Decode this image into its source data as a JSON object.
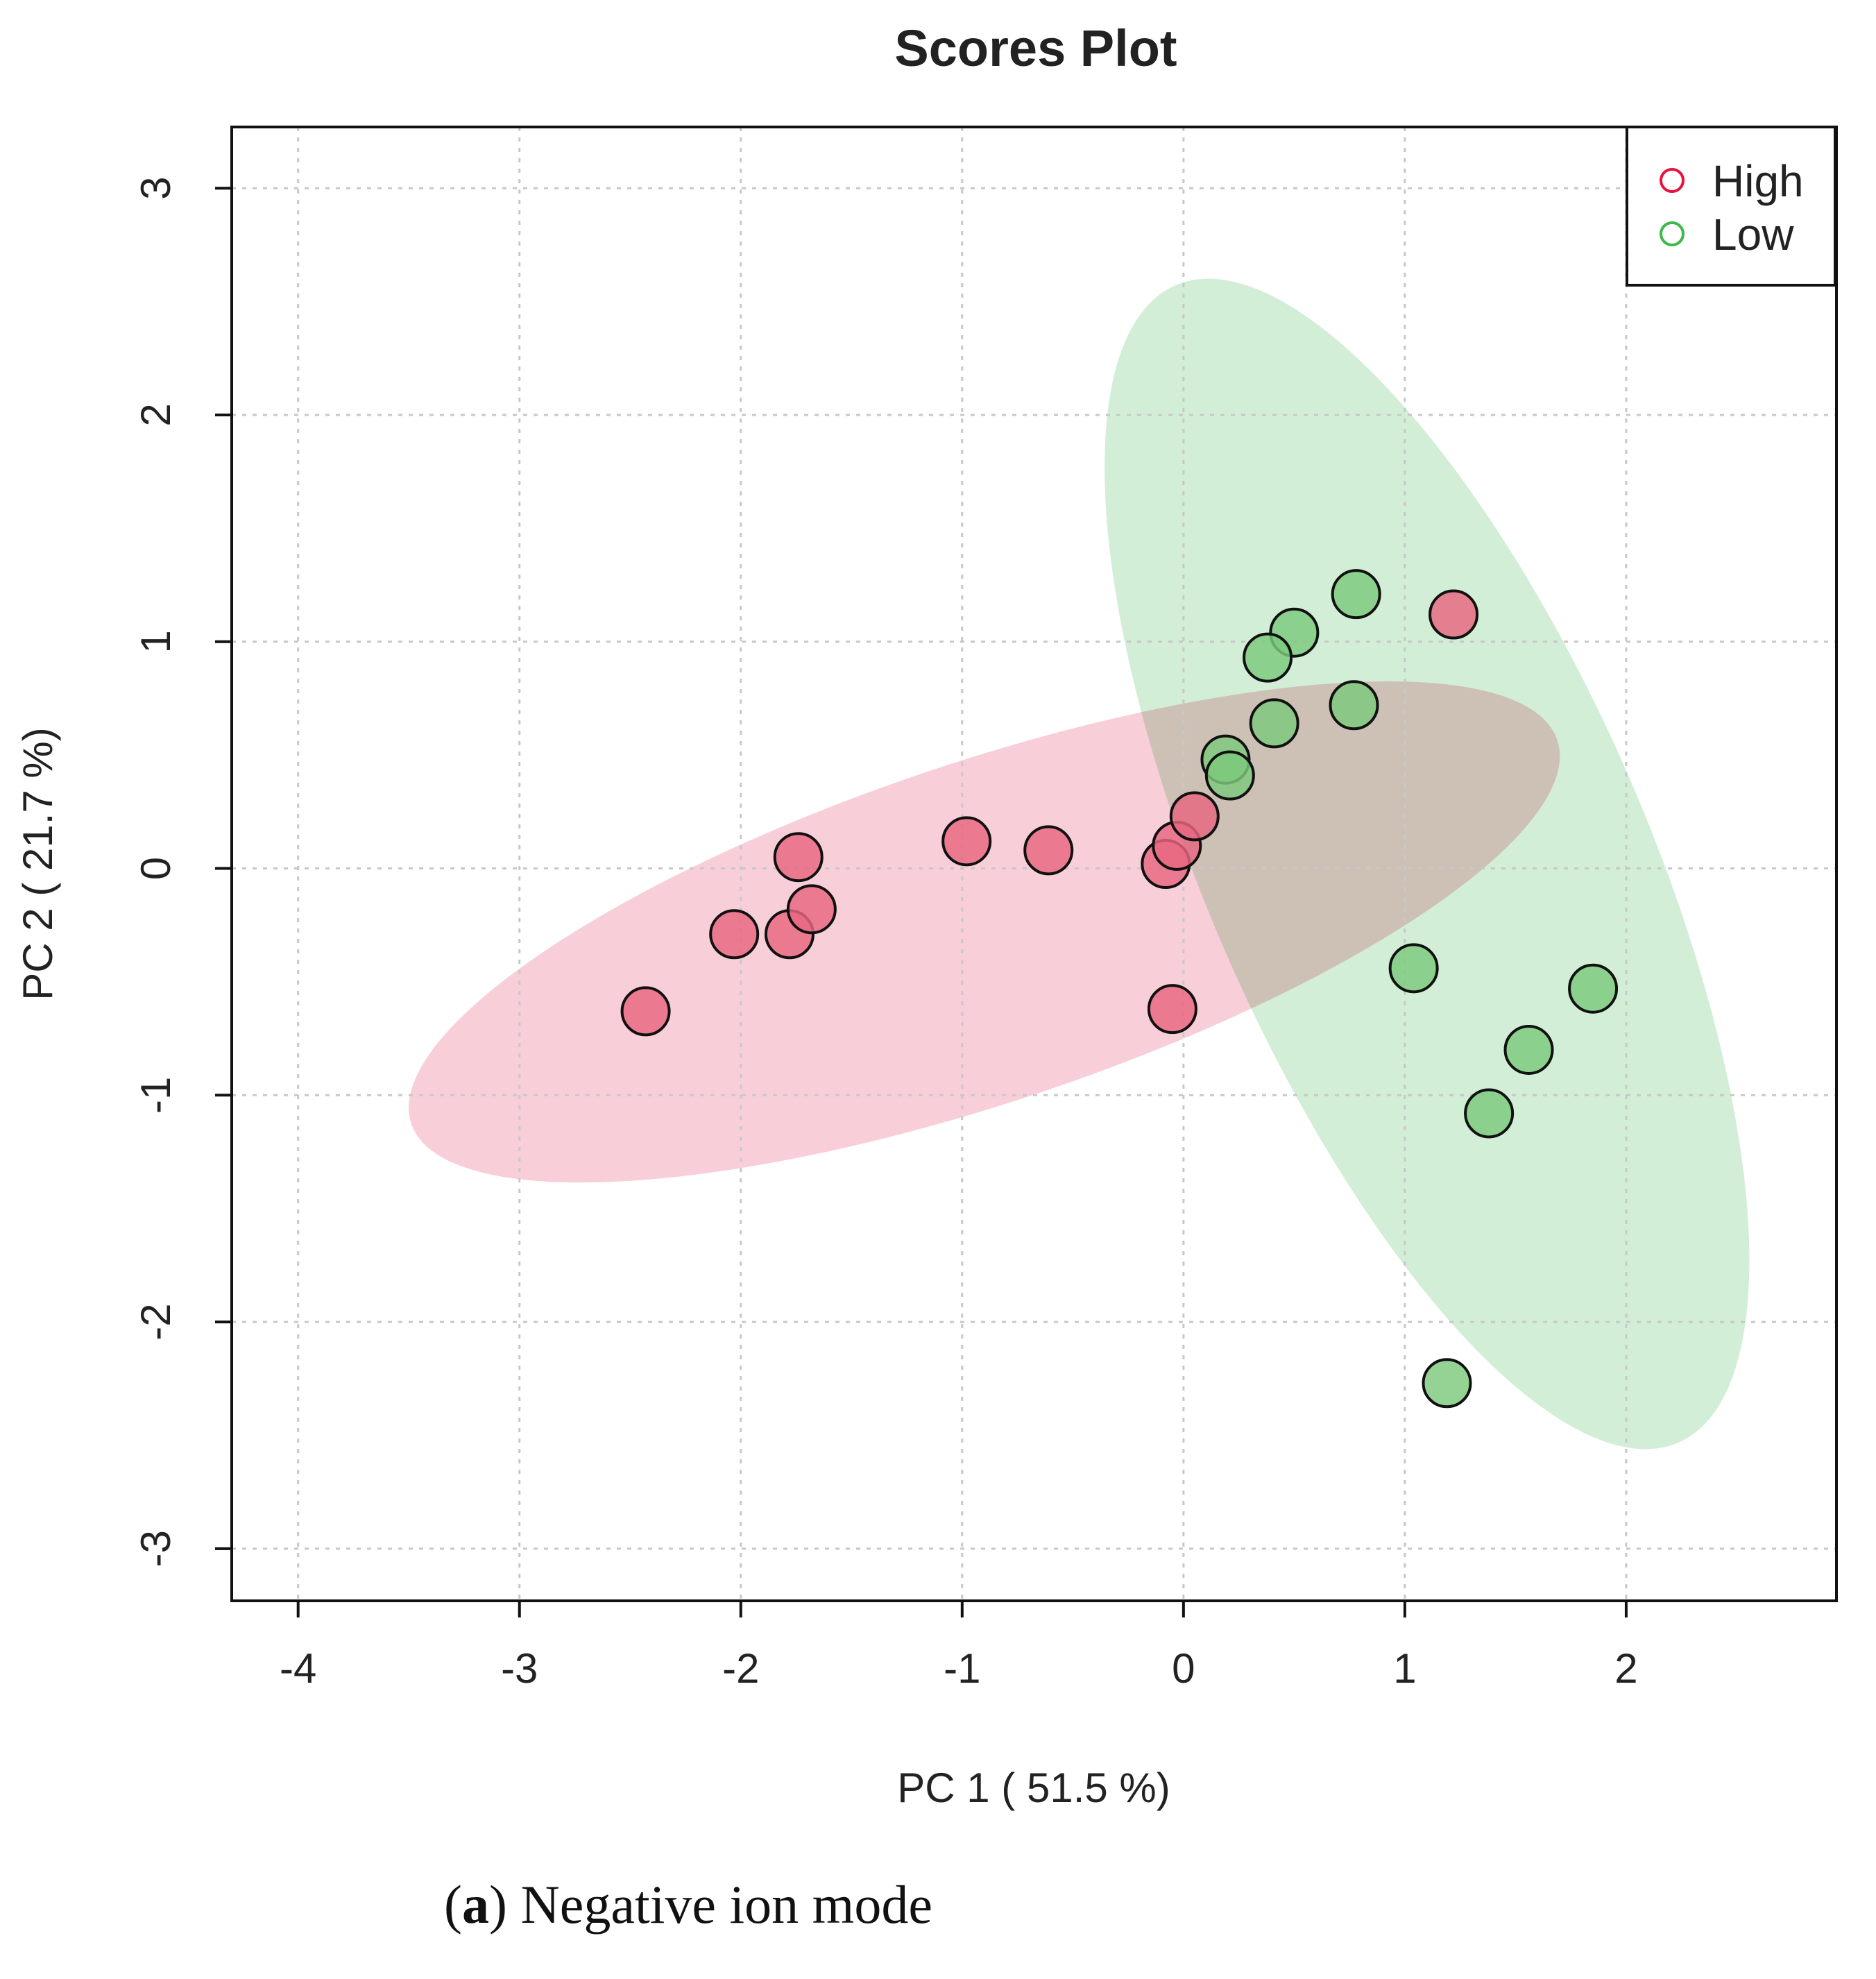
{
  "chart_data": {
    "type": "scatter",
    "title": "Scores Plot",
    "xlabel": "PC 1 ( 51.5 %)",
    "ylabel": "PC 2 ( 21.7 %)",
    "xlim": [
      -4.3,
      2.95
    ],
    "ylim": [
      -3.23,
      3.27
    ],
    "xticks": [
      -4,
      -3,
      -2,
      -1,
      0,
      1,
      2
    ],
    "yticks": [
      -3,
      -2,
      -1,
      0,
      1,
      2,
      3
    ],
    "grid": true,
    "legend_position": "top-right",
    "series": [
      {
        "name": "High",
        "color": "#e8123d",
        "fill": "#e86680",
        "ellipse_fill": "#f3b1c2",
        "ellipse": {
          "center": [
            -0.9,
            -0.28
          ],
          "semi_axes": [
            2.73,
            0.75
          ],
          "angle_deg": 18.5
        },
        "points": [
          {
            "x": -2.43,
            "y": -0.63
          },
          {
            "x": -2.03,
            "y": -0.29
          },
          {
            "x": -1.78,
            "y": -0.29
          },
          {
            "x": -1.68,
            "y": -0.18
          },
          {
            "x": -1.74,
            "y": 0.05
          },
          {
            "x": -0.98,
            "y": 0.12
          },
          {
            "x": -0.61,
            "y": 0.08
          },
          {
            "x": -0.08,
            "y": 0.02
          },
          {
            "x": -0.03,
            "y": 0.1
          },
          {
            "x": 0.05,
            "y": 0.23
          },
          {
            "x": -0.05,
            "y": -0.62
          },
          {
            "x": 1.22,
            "y": 1.12
          }
        ]
      },
      {
        "name": "Low",
        "color": "#3db84a",
        "fill": "#7dc97d",
        "ellipse_fill": "#b8e3bd",
        "ellipse": {
          "center": [
            1.1,
            0.02
          ],
          "semi_axes": [
            2.85,
            0.97
          ],
          "angle_deg": 113.5
        },
        "points": [
          {
            "x": 0.78,
            "y": 1.21
          },
          {
            "x": 0.5,
            "y": 1.04
          },
          {
            "x": 0.38,
            "y": 0.93
          },
          {
            "x": 0.41,
            "y": 0.64
          },
          {
            "x": 0.77,
            "y": 0.72
          },
          {
            "x": 0.19,
            "y": 0.48
          },
          {
            "x": 0.21,
            "y": 0.41
          },
          {
            "x": 1.04,
            "y": -0.44
          },
          {
            "x": 1.85,
            "y": -0.53
          },
          {
            "x": 1.56,
            "y": -0.8
          },
          {
            "x": 1.38,
            "y": -1.08
          },
          {
            "x": 1.19,
            "y": -2.27
          }
        ]
      }
    ]
  },
  "caption": {
    "label": "a",
    "text": " Negative ion mode"
  }
}
